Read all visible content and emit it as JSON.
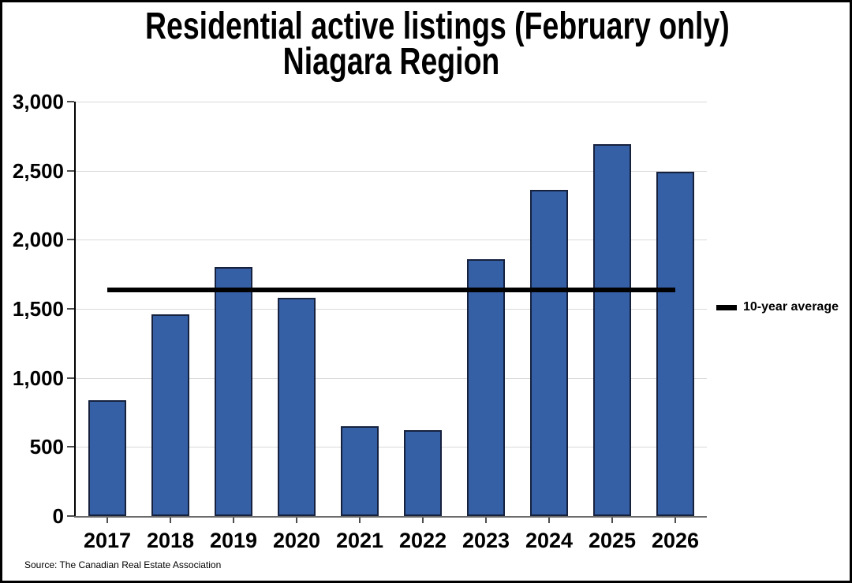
{
  "title": {
    "line1": "Residential active listings (February only)",
    "line2": "Niagara Region"
  },
  "legend": {
    "label": "10-year average"
  },
  "source": "Source: The Canadian Real Estate Association",
  "colors": {
    "bar_fill": "#3660A6",
    "bar_border": "#16213E",
    "gridline": "#D9D9D9",
    "y_axis": "#000000",
    "x_axis": "#6B6B6B",
    "tick": "#4D4D4D",
    "average_line": "#000000",
    "background": "#FFFFFF",
    "text": "#000000"
  },
  "chart_data": {
    "type": "bar",
    "title": "Residential active listings (February only) Niagara Region",
    "categories": [
      "2017",
      "2018",
      "2019",
      "2020",
      "2021",
      "2022",
      "2023",
      "2024",
      "2025",
      "2026"
    ],
    "values": [
      840,
      1460,
      1800,
      1580,
      650,
      620,
      1860,
      2360,
      2690,
      2490
    ],
    "series_name": "Residential active listings",
    "average_line": {
      "label": "10-year average",
      "value": 1635
    },
    "xlabel": "",
    "ylabel": "",
    "ylim": [
      0,
      3000
    ],
    "y_ticks": [
      0,
      500,
      1000,
      1500,
      2000,
      2500,
      3000
    ],
    "y_tick_labels": [
      "0",
      "500",
      "1,000",
      "1,500",
      "2,000",
      "2,500",
      "3,000"
    ],
    "grid": "horizontal",
    "legend_position": "right"
  }
}
